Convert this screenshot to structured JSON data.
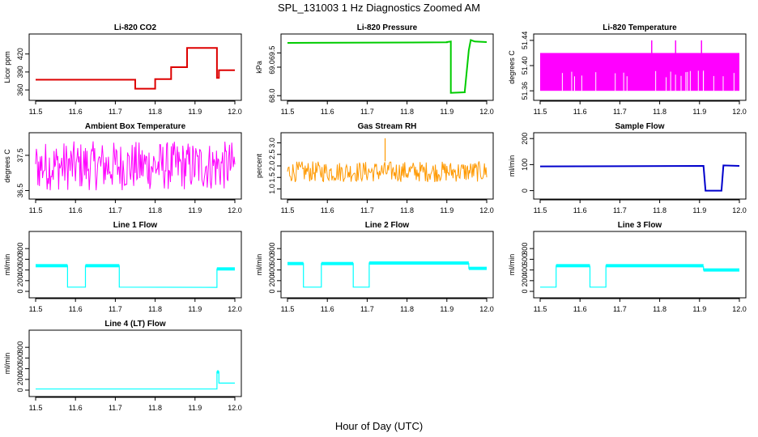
{
  "title": "SPL_131003 1 Hz Diagnostics Zoomed AM",
  "xlabel": "Hour of Day (UTC)",
  "colors": {
    "co2": "#dd0000",
    "pressure": "#00cc00",
    "temperature": "#ff00ff",
    "rh": "#ff9900",
    "sample_flow": "#0000cc",
    "line_flow": "#00ffff"
  },
  "chart_data": [
    {
      "type": "line",
      "title": "Li-820 CO2",
      "ylabel": "Licor ppm",
      "xlim": [
        11.5,
        12.0
      ],
      "ylim": [
        348,
        448
      ],
      "xticks": [
        "11.5",
        "11.6",
        "11.7",
        "11.8",
        "11.9",
        "12.0"
      ],
      "yticks": [
        "360",
        "390",
        "420"
      ],
      "color": "co2",
      "style": "step",
      "series": [
        {
          "x": [
            11.5,
            11.75,
            11.75,
            11.8,
            11.8,
            11.84,
            11.84,
            11.88,
            11.88,
            11.955,
            11.955,
            11.96,
            11.96,
            12.0
          ],
          "y": [
            377,
            377,
            362,
            362,
            378,
            378,
            398,
            398,
            430,
            430,
            380,
            380,
            393,
            393
          ]
        }
      ]
    },
    {
      "type": "line",
      "title": "Li-820 Pressure",
      "ylabel": "kPa",
      "xlim": [
        11.5,
        12.0
      ],
      "ylim": [
        67.95,
        70.05
      ],
      "xticks": [
        "11.5",
        "11.6",
        "11.7",
        "11.8",
        "11.9",
        "12.0"
      ],
      "yticks": [
        "68.0",
        "69.0",
        "69.5"
      ],
      "color": "pressure",
      "style": "step",
      "series": [
        {
          "x": [
            11.5,
            11.9,
            11.9,
            11.91,
            11.91,
            11.945,
            11.945,
            11.955,
            11.96,
            11.97,
            12.0
          ],
          "y": [
            69.85,
            69.87,
            69.88,
            69.9,
            68.1,
            68.12,
            68.15,
            69.6,
            69.95,
            69.9,
            69.88
          ]
        }
      ]
    },
    {
      "type": "line",
      "title": "Li-820 Temperature",
      "ylabel": "degrees C",
      "xlim": [
        11.5,
        12.0
      ],
      "ylim": [
        51.35,
        51.445
      ],
      "xticks": [
        "11.5",
        "11.6",
        "11.7",
        "11.8",
        "11.9",
        "12.0"
      ],
      "yticks": [
        "51.36",
        "51.40",
        "51.44"
      ],
      "color": "temperature",
      "style": "band",
      "series": [
        {
          "x": [
            11.5,
            12.0
          ],
          "y_low": [
            51.36,
            51.36
          ],
          "y_high": [
            51.42,
            51.42
          ],
          "spikes_x": [
            11.78,
            11.84,
            11.905
          ],
          "spikes_y": [
            51.44,
            51.44,
            51.44
          ]
        }
      ]
    },
    {
      "type": "line",
      "title": "Ambient Box Temperature",
      "ylabel": "degrees C",
      "xlim": [
        11.5,
        12.0
      ],
      "ylim": [
        36.35,
        38.05
      ],
      "xticks": [
        "11.5",
        "11.6",
        "11.7",
        "11.8",
        "11.9",
        "12.0"
      ],
      "yticks": [
        "36.5",
        "37.5"
      ],
      "color": "temperature",
      "style": "noise",
      "series": [
        {
          "x": [
            11.5,
            12.0
          ],
          "y_low": [
            36.5,
            36.5
          ],
          "y_high": [
            37.9,
            37.9
          ]
        }
      ]
    },
    {
      "type": "line",
      "title": "Gas Stream RH",
      "ylabel": "percent",
      "xlim": [
        11.5,
        12.0
      ],
      "ylim": [
        0.7,
        3.3
      ],
      "xticks": [
        "11.5",
        "11.6",
        "11.7",
        "11.8",
        "11.9",
        "12.0"
      ],
      "yticks": [
        "1.0",
        "1.5",
        "2.0",
        "2.5",
        "3.0"
      ],
      "color": "rh",
      "style": "noise",
      "series": [
        {
          "x": [
            11.5,
            12.0
          ],
          "y_low": [
            1.3,
            1.3
          ],
          "y_high": [
            2.2,
            2.2
          ],
          "spikes_x": [
            11.745
          ],
          "spikes_y": [
            3.2
          ]
        }
      ]
    },
    {
      "type": "line",
      "title": "Sample Flow",
      "ylabel": "ml/min",
      "xlim": [
        11.5,
        12.0
      ],
      "ylim": [
        -20,
        210
      ],
      "xticks": [
        "11.5",
        "11.6",
        "11.7",
        "11.8",
        "11.9",
        "12.0"
      ],
      "yticks": [
        "0",
        "100",
        "200"
      ],
      "color": "sample_flow",
      "style": "step",
      "series": [
        {
          "x": [
            11.5,
            11.91,
            11.915,
            11.955,
            11.96,
            12.0
          ],
          "y": [
            93,
            95,
            0,
            0,
            97,
            95
          ]
        }
      ]
    },
    {
      "type": "line",
      "title": "Line 1 Flow",
      "ylabel": "ml/min",
      "xlim": [
        11.5,
        12.0
      ],
      "ylim": [
        -60,
        1060
      ],
      "xticks": [
        "11.5",
        "11.6",
        "11.7",
        "11.8",
        "11.9",
        "12.0"
      ],
      "yticks": [
        "0",
        "200",
        "400",
        "600",
        "800"
      ],
      "color": "line_flow",
      "style": "step",
      "series": [
        {
          "x": [
            11.5,
            11.58,
            11.58,
            11.625,
            11.625,
            11.71,
            11.71,
            11.955,
            11.955,
            12.0
          ],
          "y": [
            480,
            480,
            80,
            80,
            480,
            480,
            80,
            75,
            420,
            420
          ]
        }
      ]
    },
    {
      "type": "line",
      "title": "Line 2 Flow",
      "ylabel": "ml/min",
      "xlim": [
        11.5,
        12.0
      ],
      "ylim": [
        -60,
        1060
      ],
      "xticks": [
        "11.5",
        "11.6",
        "11.7",
        "11.8",
        "11.9",
        "12.0"
      ],
      "yticks": [
        "0",
        "200",
        "400",
        "600",
        "800"
      ],
      "color": "line_flow",
      "style": "step",
      "series": [
        {
          "x": [
            11.5,
            11.54,
            11.54,
            11.585,
            11.585,
            11.665,
            11.665,
            11.705,
            11.705,
            11.955,
            11.955,
            12.0
          ],
          "y": [
            520,
            520,
            80,
            80,
            520,
            520,
            80,
            80,
            530,
            520,
            430,
            430
          ]
        }
      ]
    },
    {
      "type": "line",
      "title": "Line 3 Flow",
      "ylabel": "ml/min",
      "xlim": [
        11.5,
        12.0
      ],
      "ylim": [
        -60,
        1060
      ],
      "xticks": [
        "11.5",
        "11.6",
        "11.7",
        "11.8",
        "11.9",
        "12.0"
      ],
      "yticks": [
        "0",
        "200",
        "400",
        "600",
        "800"
      ],
      "color": "line_flow",
      "style": "step",
      "series": [
        {
          "x": [
            11.5,
            11.54,
            11.54,
            11.625,
            11.625,
            11.665,
            11.665,
            11.91,
            11.91,
            12.0
          ],
          "y": [
            80,
            80,
            480,
            470,
            80,
            80,
            480,
            460,
            400,
            400
          ]
        }
      ]
    },
    {
      "type": "line",
      "title": "Line 4 (LT) Flow",
      "ylabel": "ml/min",
      "xlim": [
        11.5,
        12.0
      ],
      "ylim": [
        -60,
        1060
      ],
      "xticks": [
        "11.5",
        "11.6",
        "11.7",
        "11.8",
        "11.9",
        "12.0"
      ],
      "yticks": [
        "0",
        "200",
        "400",
        "600",
        "800"
      ],
      "color": "line_flow",
      "style": "step",
      "series": [
        {
          "x": [
            11.5,
            11.955,
            11.955,
            11.96,
            11.96,
            12.0
          ],
          "y": [
            20,
            20,
            340,
            340,
            130,
            130
          ]
        }
      ]
    }
  ]
}
